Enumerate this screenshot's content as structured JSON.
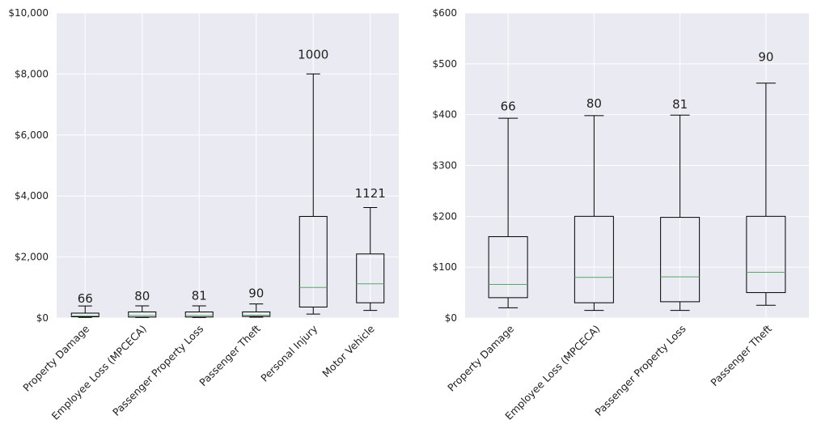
{
  "chart_data": [
    {
      "type": "box",
      "ylim": [
        0,
        10000
      ],
      "yticks": [
        0,
        2000,
        4000,
        6000,
        8000,
        10000
      ],
      "ytick_labels": [
        "$0",
        "$2,000",
        "$4,000",
        "$6,000",
        "$8,000",
        "$10,000"
      ],
      "grid": true,
      "categories": [
        "Property Damage",
        "Employee Loss (MPCECA)",
        "Passenger Property Loss",
        "Passenger Theft",
        "Personal Injury",
        "Motor Vehicle"
      ],
      "boxes": [
        {
          "whislo": 20,
          "q1": 40,
          "med": 66,
          "q3": 160,
          "whishi": 393
        },
        {
          "whislo": 15,
          "q1": 30,
          "med": 80,
          "q3": 200,
          "whishi": 398
        },
        {
          "whislo": 15,
          "q1": 32,
          "med": 81,
          "q3": 198,
          "whishi": 399
        },
        {
          "whislo": 25,
          "q1": 50,
          "med": 90,
          "q3": 200,
          "whishi": 462
        },
        {
          "whislo": 130,
          "q1": 360,
          "med": 1000,
          "q3": 3330,
          "whishi": 8000
        },
        {
          "whislo": 250,
          "q1": 500,
          "med": 1121,
          "q3": 2100,
          "whishi": 3620
        }
      ],
      "annotations": [
        "66",
        "80",
        "81",
        "90",
        "1000",
        "1121"
      ],
      "annotation_values": [
        500,
        580,
        600,
        680,
        8500,
        3950
      ]
    },
    {
      "type": "box",
      "ylim": [
        0,
        600
      ],
      "yticks": [
        0,
        100,
        200,
        300,
        400,
        500,
        600
      ],
      "ytick_labels": [
        "$0",
        "$100",
        "$200",
        "$300",
        "$400",
        "$500",
        "$600"
      ],
      "grid": true,
      "categories": [
        "Property Damage",
        "Employee Loss (MPCECA)",
        "Passenger Property Loss",
        "Passenger Theft"
      ],
      "boxes": [
        {
          "whislo": 20,
          "q1": 40,
          "med": 66,
          "q3": 160,
          "whishi": 393
        },
        {
          "whislo": 15,
          "q1": 30,
          "med": 80,
          "q3": 200,
          "whishi": 398
        },
        {
          "whislo": 15,
          "q1": 32,
          "med": 81,
          "q3": 198,
          "whishi": 399
        },
        {
          "whislo": 25,
          "q1": 50,
          "med": 90,
          "q3": 200,
          "whishi": 462
        }
      ],
      "annotations": [
        "66",
        "80",
        "81",
        "90"
      ],
      "annotation_values": [
        408,
        414,
        412,
        505
      ]
    }
  ],
  "colors": {
    "plot_bg": "#EAEAF2",
    "grid": "#FFFFFF",
    "box": "#000000",
    "median": "#55A868",
    "text": "#222222"
  }
}
